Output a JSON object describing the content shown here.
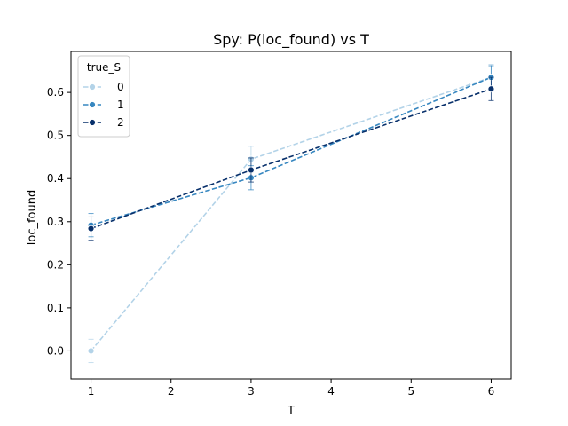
{
  "chart_data": {
    "type": "line",
    "title": "Spy: P(loc_found) vs T",
    "xlabel": "T",
    "ylabel": "loc_found",
    "xlim": [
      0.75,
      6.25
    ],
    "ylim": [
      -0.065,
      0.695
    ],
    "xticks": [
      "1",
      "2",
      "3",
      "4",
      "5",
      "6"
    ],
    "yticks": [
      "0.0",
      "0.1",
      "0.2",
      "0.3",
      "0.4",
      "0.5",
      "0.6"
    ],
    "grid": false,
    "legend": {
      "title": "true_S",
      "placement": "top-left"
    },
    "x": [
      1,
      3,
      6
    ],
    "series": [
      {
        "name": "0",
        "color": "#b3d3e8",
        "values": [
          0.0,
          0.445,
          0.635
        ],
        "err": [
          0.027,
          0.03,
          0.03
        ]
      },
      {
        "name": "1",
        "color": "#3787c0",
        "values": [
          0.292,
          0.402,
          0.635
        ],
        "err": [
          0.027,
          0.028,
          0.027
        ]
      },
      {
        "name": "2",
        "color": "#08306b",
        "values": [
          0.284,
          0.42,
          0.608
        ],
        "err": [
          0.027,
          0.028,
          0.027
        ]
      }
    ]
  }
}
